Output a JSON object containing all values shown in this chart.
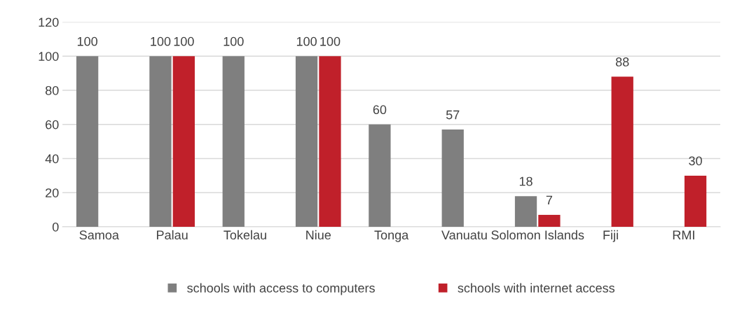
{
  "chart_data": {
    "type": "bar",
    "categories": [
      "Samoa",
      "Palau",
      "Tokelau",
      "Niue",
      "Tonga",
      "Vanuatu",
      "Solomon Islands",
      "Fiji",
      "RMI"
    ],
    "series": [
      {
        "name": "schools with access to computers",
        "color": "#7f7f7f",
        "values": [
          100,
          100,
          100,
          100,
          60,
          57,
          18,
          null,
          null
        ]
      },
      {
        "name": "schools with internet access",
        "color": "#c0202a",
        "values": [
          null,
          100,
          null,
          100,
          null,
          null,
          7,
          88,
          30
        ]
      }
    ],
    "ylim": [
      0,
      120
    ],
    "yticks": [
      0,
      20,
      40,
      60,
      80,
      100,
      120
    ],
    "grid": "y",
    "legend": "bottom",
    "data_labels": true
  }
}
